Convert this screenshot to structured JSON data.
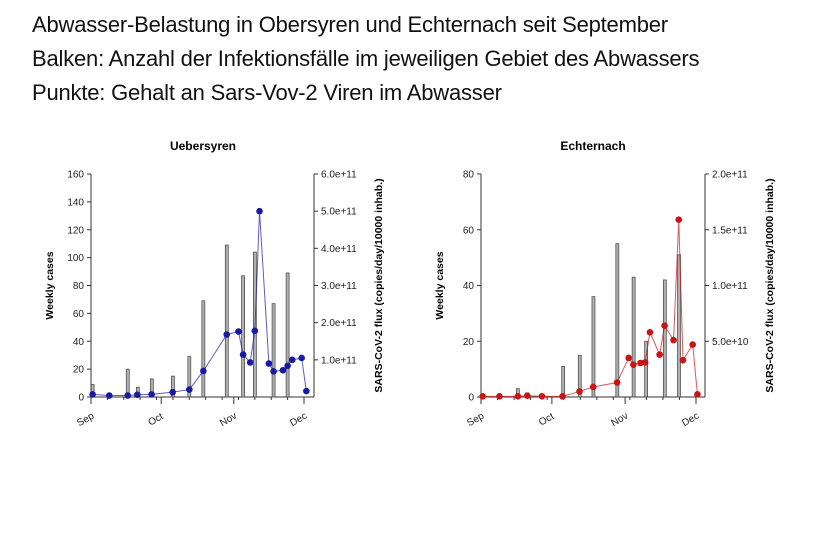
{
  "heading": {
    "line1": "Abwasser-Belastung in Obersyren und Echternach seit September",
    "line2": "Balken: Anzahl der Infektionsfälle im jeweiligen Gebiet des Abwassers",
    "line3": "Punkte: Gehalt an Sars-Vov-2 Viren im Abwasser"
  },
  "chart_data": [
    {
      "type": "bar+line",
      "title": "Uebersyren",
      "xlabel": "",
      "ylabel": "Weekly cases",
      "y2label": "SARS-CoV-2 flux (copies/day/10000 inhab.)",
      "x_unit": "days since Sep 1",
      "xlim": [
        0,
        95
      ],
      "x_ticks": [
        {
          "label": "Sep",
          "x": 0
        },
        {
          "label": "Oct",
          "x": 30
        },
        {
          "label": "Nov",
          "x": 61
        },
        {
          "label": "Dec",
          "x": 91
        }
      ],
      "ylim": [
        0,
        160
      ],
      "y_ticks": [
        "0",
        "20",
        "40",
        "60",
        "80",
        "100",
        "120",
        "140",
        "160"
      ],
      "y2lim": [
        0,
        600000000000.0
      ],
      "y2_ticks": [
        {
          "label": "1.0e+11",
          "v": 100000000000.0
        },
        {
          "label": "2.0e+11",
          "v": 200000000000.0
        },
        {
          "label": "3.0e+11",
          "v": 300000000000.0
        },
        {
          "label": "4.0e+11",
          "v": 400000000000.0
        },
        {
          "label": "5.0e+11",
          "v": 500000000000.0
        },
        {
          "label": "6.0e+11",
          "v": 600000000000.0
        }
      ],
      "line_color": "#1a1aa0",
      "bars": {
        "name": "Weekly cases",
        "x": [
          0.7,
          15.7,
          20,
          26,
          35,
          42,
          48,
          58,
          65,
          70,
          78,
          84
        ],
        "values": [
          9,
          20,
          7,
          13,
          15,
          29,
          69,
          109,
          87,
          104,
          67,
          89
        ]
      },
      "points": {
        "name": "SARS-CoV-2 flux",
        "x": [
          0.7,
          7.8,
          15.7,
          19.8,
          25.9,
          34.9,
          42,
          48,
          58,
          63,
          65,
          68,
          70,
          72,
          76,
          78,
          82,
          84,
          86,
          90,
          92
        ],
        "values": [
          7000000000.0,
          4000000000.0,
          4000000000.0,
          6000000000.0,
          7000000000.0,
          13000000000.0,
          20000000000.0,
          70000000000.0,
          168000000000.0,
          176000000000.0,
          114000000000.0,
          93000000000.0,
          178000000000.0,
          500000000000.0,
          90000000000.0,
          69000000000.0,
          72000000000.0,
          84000000000.0,
          100000000000.0,
          105000000000.0,
          16000000000.0
        ]
      }
    },
    {
      "type": "bar+line",
      "title": "Echternach",
      "xlabel": "",
      "ylabel": "Weekly cases",
      "y2label": "SARS-CoV-2 flux (copies/day/10000 inhab.)",
      "x_unit": "days since Sep 1",
      "xlim": [
        0,
        95
      ],
      "x_ticks": [
        {
          "label": "Sep",
          "x": 0
        },
        {
          "label": "Oct",
          "x": 30
        },
        {
          "label": "Nov",
          "x": 61
        },
        {
          "label": "Dec",
          "x": 91
        }
      ],
      "ylim": [
        0,
        80
      ],
      "y_ticks": [
        "0",
        "20",
        "40",
        "60",
        "80"
      ],
      "y2lim": [
        0,
        200000000000.0
      ],
      "y2_ticks": [
        {
          "label": "5.0e+10",
          "v": 50000000000.0
        },
        {
          "label": "1.0e+11",
          "v": 100000000000.0
        },
        {
          "label": "1.5e+11",
          "v": 150000000000.0
        },
        {
          "label": "2.0e+11",
          "v": 200000000000.0
        }
      ],
      "line_color": "#c81414",
      "bars": {
        "name": "Weekly cases",
        "x": [
          15.6,
          19.6,
          34.8,
          41.8,
          47.6,
          57.7,
          64.6,
          69.9,
          77.8,
          83.8
        ],
        "values": [
          3,
          1.5,
          11,
          15,
          36,
          55,
          43,
          20,
          42,
          51
        ]
      },
      "points": {
        "name": "SARS-CoV-2 flux",
        "x": [
          0.7,
          7.8,
          15.6,
          19.6,
          25.8,
          34.5,
          41.7,
          47.5,
          57.6,
          62.5,
          64.5,
          67.5,
          69.5,
          71.5,
          75.6,
          77.7,
          81.5,
          83.7,
          85.5,
          89.6,
          91.6
        ],
        "values": [
          600000000.0,
          600000000.0,
          600000000.0,
          1200000000.0,
          600000000.0,
          600000000.0,
          5000000000.0,
          9000000000.0,
          13000000000.0,
          35000000000.0,
          29000000000.0,
          30500000000.0,
          31000000000.0,
          58000000000.0,
          38000000000.0,
          64000000000.0,
          51000000000.0,
          159000000000.0,
          33000000000.0,
          47000000000.0,
          2400000000.0
        ]
      }
    }
  ]
}
